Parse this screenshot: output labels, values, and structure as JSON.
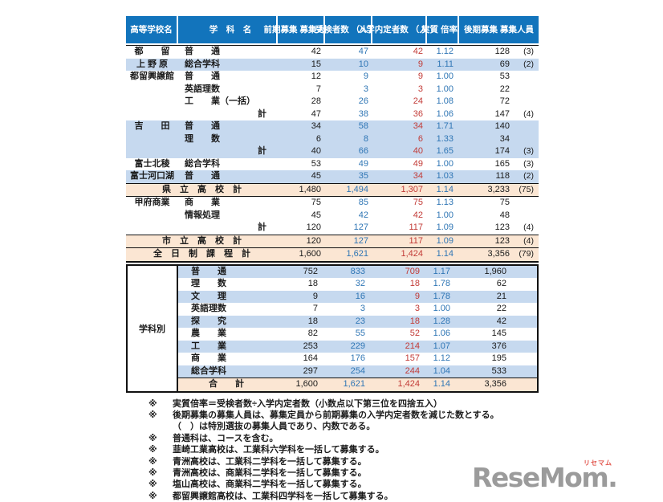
{
  "colors": {
    "header_bg": "#1274bc",
    "row_blue": "#c6d9ef",
    "row_peach": "#fbe6d3",
    "num_blue": "#2f76b5",
    "num_red": "#c23a36"
  },
  "table": {
    "header": [
      "高等学校名",
      "学　科　名",
      "前期募集\n募集人員",
      "受検者数\n（人）",
      "入学内定者数\n（人）",
      "実質\n倍率",
      "後期募集\n募集人員"
    ],
    "rows": [
      {
        "t": "d",
        "s": "都　　留",
        "d": "普　　通",
        "v": [
          "42",
          "47",
          "42",
          "1.12",
          "128",
          "(3)"
        ],
        "bg": "w"
      },
      {
        "t": "d",
        "s": "上 野 原",
        "d": "総合学科",
        "v": [
          "15",
          "10",
          "9",
          "1.11",
          "69",
          "(2)"
        ],
        "bg": "b"
      },
      {
        "t": "d",
        "s": "都留興譲館",
        "d": "普　　通",
        "v": [
          "12",
          "9",
          "9",
          "1.00",
          "53",
          ""
        ],
        "bg": "w"
      },
      {
        "t": "d",
        "s": "",
        "d": "英語理数",
        "v": [
          "7",
          "3",
          "3",
          "1.00",
          "22",
          ""
        ],
        "bg": "w"
      },
      {
        "t": "d",
        "s": "",
        "d": "工　　業（一括）",
        "v": [
          "28",
          "26",
          "24",
          "1.08",
          "72",
          ""
        ],
        "bg": "w"
      },
      {
        "t": "s",
        "s": "",
        "d": "計",
        "v": [
          "47",
          "38",
          "36",
          "1.06",
          "147",
          "(4)"
        ],
        "bg": "w"
      },
      {
        "t": "d",
        "s": "吉　　田",
        "d": "普　　通",
        "v": [
          "34",
          "58",
          "34",
          "1.71",
          "140",
          ""
        ],
        "bg": "b"
      },
      {
        "t": "d",
        "s": "",
        "d": "理　　数",
        "v": [
          "6",
          "8",
          "6",
          "1.33",
          "34",
          ""
        ],
        "bg": "b"
      },
      {
        "t": "s",
        "s": "",
        "d": "計",
        "v": [
          "40",
          "66",
          "40",
          "1.65",
          "174",
          "(3)"
        ],
        "bg": "b"
      },
      {
        "t": "d",
        "s": "富士北稜",
        "d": "総合学科",
        "v": [
          "53",
          "49",
          "49",
          "1.00",
          "165",
          "(3)"
        ],
        "bg": "w"
      },
      {
        "t": "d",
        "s": "富士河口湖",
        "d": "普　　通",
        "v": [
          "45",
          "35",
          "34",
          "1.03",
          "118",
          "(2)"
        ],
        "bg": "b"
      },
      {
        "t": "a",
        "label": "県　立　高　校　計",
        "v": [
          "1,480",
          "1,494",
          "1,307",
          "1.14",
          "3,233",
          "(75)"
        ],
        "bg": "p",
        "bt": 1,
        "bb": 1
      },
      {
        "t": "d",
        "s": "甲府商業",
        "d": "商　　業",
        "v": [
          "75",
          "85",
          "75",
          "1.13",
          "75",
          ""
        ],
        "bg": "w"
      },
      {
        "t": "d",
        "s": "",
        "d": "情報処理",
        "v": [
          "45",
          "42",
          "42",
          "1.00",
          "48",
          ""
        ],
        "bg": "w"
      },
      {
        "t": "s",
        "s": "",
        "d": "計",
        "v": [
          "120",
          "127",
          "117",
          "1.09",
          "123",
          "(4)"
        ],
        "bg": "w"
      },
      {
        "t": "a",
        "label": "市　立　高　校　計",
        "v": [
          "120",
          "127",
          "117",
          "1.09",
          "123",
          "(4)"
        ],
        "bg": "p",
        "bt": 1,
        "bb": 1
      },
      {
        "t": "a",
        "label": "全　日　制　課　程　計",
        "v": [
          "1,600",
          "1,621",
          "1,424",
          "1.14",
          "3,356",
          "(79)"
        ],
        "bg": "p",
        "bb": 2
      }
    ],
    "department_block": {
      "label": "学科別",
      "rows": [
        {
          "t": "d",
          "d": "普　　通",
          "v": [
            "752",
            "833",
            "709",
            "1.17",
            "1,960",
            ""
          ],
          "bg": "b"
        },
        {
          "t": "d",
          "d": "理　　数",
          "v": [
            "18",
            "32",
            "18",
            "1.78",
            "62",
            ""
          ],
          "bg": "w"
        },
        {
          "t": "d",
          "d": "文　　理",
          "v": [
            "9",
            "16",
            "9",
            "1.78",
            "21",
            ""
          ],
          "bg": "b"
        },
        {
          "t": "d",
          "d": "英語理数",
          "v": [
            "7",
            "3",
            "3",
            "1.00",
            "22",
            ""
          ],
          "bg": "w"
        },
        {
          "t": "d",
          "d": "探　　究",
          "v": [
            "18",
            "23",
            "18",
            "1.28",
            "42",
            ""
          ],
          "bg": "b"
        },
        {
          "t": "d",
          "d": "農　　業",
          "v": [
            "82",
            "55",
            "52",
            "1.06",
            "145",
            ""
          ],
          "bg": "w"
        },
        {
          "t": "d",
          "d": "工　　業",
          "v": [
            "253",
            "229",
            "214",
            "1.07",
            "376",
            ""
          ],
          "bg": "b"
        },
        {
          "t": "d",
          "d": "商　　業",
          "v": [
            "164",
            "176",
            "157",
            "1.12",
            "195",
            ""
          ],
          "bg": "w"
        },
        {
          "t": "d",
          "d": "総合学科",
          "v": [
            "297",
            "254",
            "244",
            "1.04",
            "533",
            ""
          ],
          "bg": "b"
        },
        {
          "t": "t",
          "label": "合　　計",
          "v": [
            "1,600",
            "1,621",
            "1,424",
            "1.14",
            "3,356",
            ""
          ],
          "bg": "p",
          "bt": 1
        }
      ]
    }
  },
  "footnotes": [
    {
      "mark": "※",
      "text": "実質倍率＝受検者数÷入学内定者数（小数点以下第三位を四捨五入）"
    },
    {
      "mark": "※",
      "text": "後期募集の募集人員は、募集定員から前期募集の入学内定者数を減じた数とする。"
    },
    {
      "mark": "",
      "text": "（　）は特別選抜の募集人員であり、内数である。"
    },
    {
      "mark": "※",
      "text": "普通科は、コースを含む。"
    },
    {
      "mark": "※",
      "text": "韮崎工業高校は、工業科六学科を一括して募集する。"
    },
    {
      "mark": "※",
      "text": "青洲高校は、工業科二学科を一括して募集する。"
    },
    {
      "mark": "※",
      "text": "青洲高校は、商業科二学科を一括して募集する。"
    },
    {
      "mark": "※",
      "text": "塩山高校は、商業科二学科を一括して募集する。"
    },
    {
      "mark": "※",
      "text": "都留興譲館高校は、工業科四学科を一括して募集する。"
    }
  ],
  "logo": {
    "text": "ReseMom.",
    "kana": "リセマム"
  }
}
